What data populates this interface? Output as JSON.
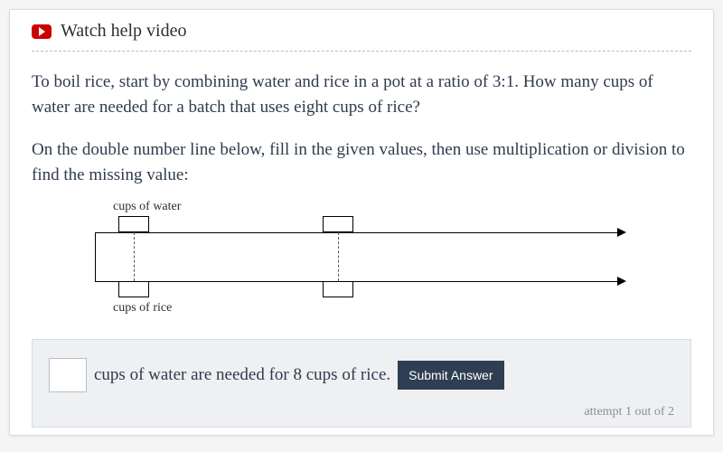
{
  "video": {
    "label": "Watch help video"
  },
  "question": "To boil rice, start by combining water and rice in a pot at a ratio of 3:1. How many cups of water are needed for a batch that uses eight cups of rice?",
  "instruction": "On the double number line below, fill in the given values, then use multiplication or division to find the missing value:",
  "diagram": {
    "top_label": "cups of water",
    "bottom_label": "cups of rice"
  },
  "answer": {
    "text": "cups of water are needed for 8 cups of rice.",
    "submit_label": "Submit Answer",
    "attempt_text": "attempt 1 out of 2"
  }
}
